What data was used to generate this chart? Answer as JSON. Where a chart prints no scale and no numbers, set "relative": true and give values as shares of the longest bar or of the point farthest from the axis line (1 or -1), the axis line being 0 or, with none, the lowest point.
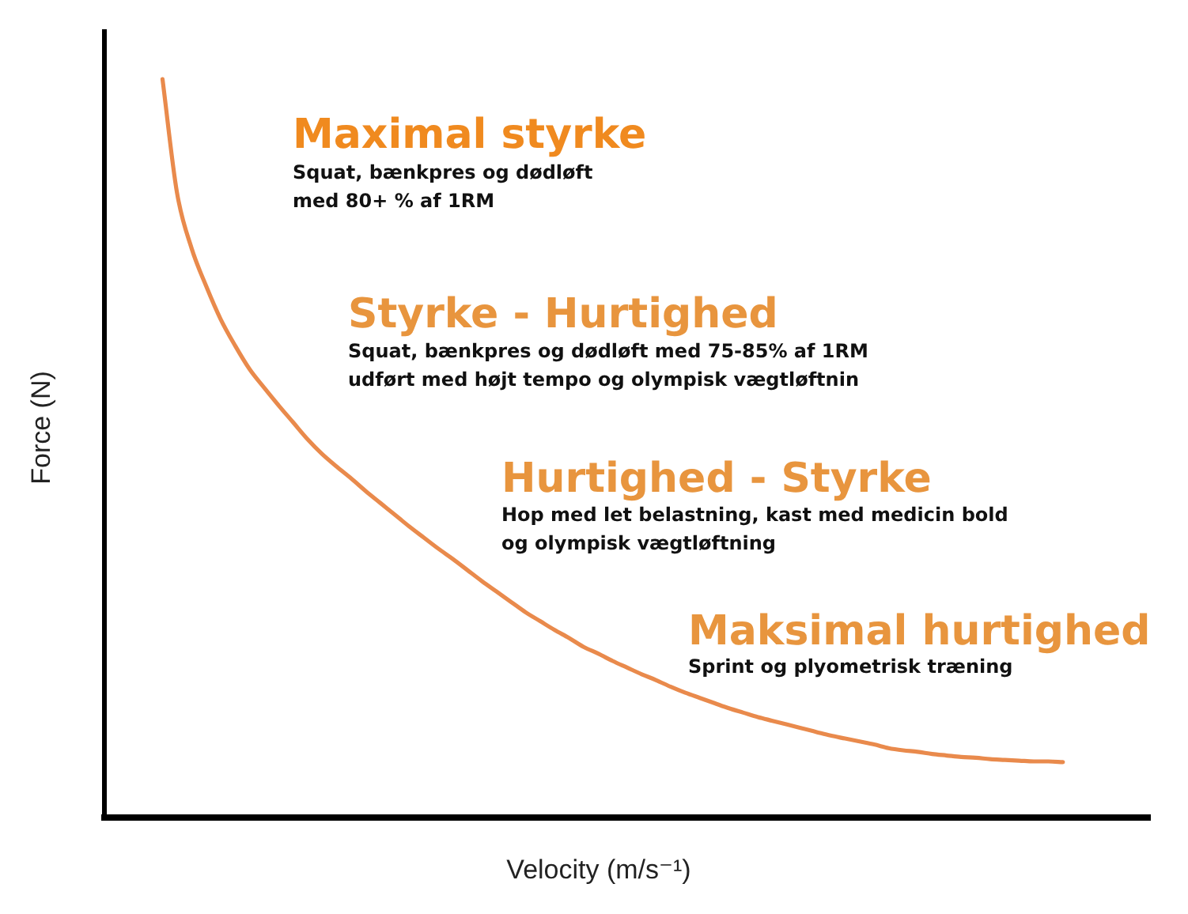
{
  "chart_data": {
    "type": "line",
    "xlabel": "Velocity (m/s⁻¹)",
    "ylabel": "Force (N)",
    "relative": true,
    "marker": "none",
    "line_style": "solid",
    "categories": [
      null,
      null,
      null,
      null,
      null,
      null,
      null,
      null,
      null,
      null,
      null,
      null,
      null,
      null,
      null,
      null,
      null,
      null,
      null,
      null,
      null,
      null,
      null,
      null,
      null,
      null,
      null,
      null,
      null,
      null,
      null,
      null,
      null,
      null,
      null,
      null,
      null,
      null,
      null,
      null,
      null,
      null,
      null,
      null,
      null,
      null,
      null,
      null,
      null,
      null,
      null,
      null,
      null,
      null,
      null,
      null,
      null,
      null,
      null,
      null,
      null,
      null,
      null,
      null,
      null,
      null,
      null,
      null,
      null,
      null,
      null,
      null,
      null
    ],
    "series": [
      {
        "color": "#e98a4c",
        "values": [
          null,
          null,
          null,
          null,
          1.0,
          0.846,
          0.771,
          0.72,
          0.675,
          0.639,
          0.607,
          0.582,
          0.558,
          0.535,
          0.512,
          0.492,
          0.475,
          0.459,
          0.442,
          0.426,
          0.41,
          0.394,
          0.379,
          0.364,
          0.35,
          0.335,
          0.32,
          0.306,
          0.292,
          0.278,
          0.266,
          0.254,
          0.243,
          0.231,
          0.222,
          0.212,
          0.203,
          0.194,
          0.186,
          0.177,
          0.169,
          0.162,
          0.155,
          0.148,
          0.142,
          0.136,
          0.131,
          0.126,
          0.121,
          0.116,
          0.111,
          0.107,
          0.103,
          0.099,
          0.094,
          0.091,
          0.089,
          0.086,
          0.084,
          0.082,
          0.081,
          0.079,
          0.078,
          0.077,
          0.076,
          0.076,
          0.075,
          null,
          null,
          null,
          null,
          null,
          null
        ]
      }
    ],
    "annotations": [
      "Maximal styrke",
      "Squat, bænkpres og dødløft\nmed 80+ % af 1RM",
      "Styrke - Hurtighed",
      "Squat, bænkpres og dødløft med 75-85% af 1RM\nudført med højt tempo og olympisk vægtløftnin",
      "Hurtighed - Styrke",
      "Hop med let belastning, kast med medicin bold\nog olympisk vægtløftning",
      "Maksimal hurtighed",
      "Sprint og plyometrisk træning"
    ]
  }
}
